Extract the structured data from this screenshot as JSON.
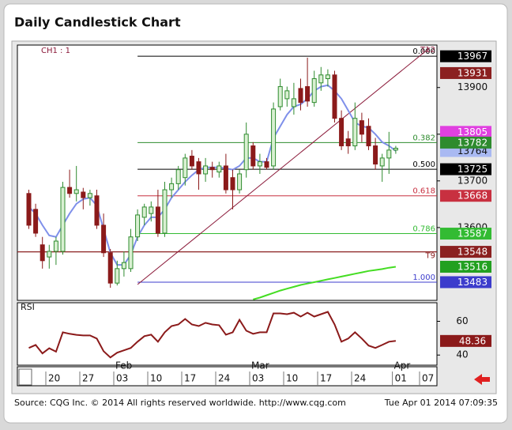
{
  "chart_data": [
    {
      "type": "candlestick",
      "title": "Daily Candlestick Chart",
      "label": "CH1 : 1",
      "categories": [
        null,
        null,
        null,
        "20",
        null,
        null,
        null,
        null,
        "27",
        null,
        null,
        null,
        null,
        "03",
        null,
        null,
        null,
        null,
        "10",
        null,
        null,
        null,
        null,
        "17",
        null,
        null,
        null,
        null,
        "24",
        null,
        null,
        null,
        null,
        "03",
        null,
        null,
        null,
        null,
        "10",
        null,
        null,
        null,
        null,
        "17",
        null,
        null,
        null,
        null,
        "24",
        null,
        null,
        null,
        null,
        null,
        "01",
        null,
        null,
        null,
        "07",
        null
      ],
      "months": [
        null,
        null,
        null,
        null,
        null,
        null,
        null,
        null,
        null,
        null,
        null,
        null,
        null,
        "Feb",
        null,
        null,
        null,
        null,
        null,
        null,
        null,
        null,
        null,
        null,
        null,
        null,
        null,
        null,
        null,
        null,
        null,
        null,
        null,
        "Mar",
        null,
        null,
        null,
        null,
        null,
        null,
        null,
        null,
        null,
        null,
        null,
        null,
        null,
        null,
        null,
        null,
        null,
        null,
        null,
        null,
        "Apr",
        null,
        null,
        null,
        null,
        null
      ],
      "open": [
        13673,
        13639,
        13563,
        13537,
        13549,
        13549,
        13686,
        13673,
        13676,
        13664,
        13668,
        13605,
        13546,
        13481,
        13512,
        13512,
        13580,
        13622,
        13630,
        13644,
        13588,
        13681,
        13694,
        13707,
        13753,
        13741,
        13715,
        13729,
        13719,
        13732,
        13707,
        13681,
        13724,
        13775,
        13732,
        13741,
        13732,
        13859,
        13876,
        13859,
        13898,
        13902,
        13868,
        13910,
        13919,
        13927,
        13834,
        13790,
        13775,
        13829,
        13817,
        13775,
        13732,
        13749,
        13766,
        null,
        null,
        null,
        null,
        null
      ],
      "high": [
        13681,
        13651,
        13580,
        13563,
        13580,
        13698,
        13724,
        13732,
        13685,
        13681,
        13681,
        13630,
        13554,
        13529,
        13549,
        13597,
        13639,
        13651,
        13656,
        13681,
        13698,
        13707,
        13732,
        13758,
        13766,
        13749,
        13749,
        13741,
        13741,
        13758,
        13724,
        13724,
        13825,
        13783,
        13758,
        13749,
        13868,
        13919,
        13902,
        13910,
        13919,
        13964,
        13936,
        13944,
        13939,
        13936,
        13851,
        13807,
        13868,
        13846,
        13834,
        13792,
        13758,
        13805,
        13775,
        null,
        null,
        null,
        null,
        null
      ],
      "low": [
        13597,
        13580,
        13512,
        13512,
        13520,
        13542,
        13664,
        13656,
        13639,
        13647,
        13597,
        13537,
        13471,
        13476,
        13495,
        13505,
        13571,
        13605,
        13613,
        13580,
        13580,
        13664,
        13681,
        13690,
        13724,
        13681,
        13698,
        13707,
        13707,
        13673,
        13639,
        13673,
        13707,
        13724,
        13715,
        13724,
        13724,
        13851,
        13859,
        13842,
        13851,
        13859,
        13859,
        13893,
        13902,
        13825,
        13766,
        13758,
        13766,
        13783,
        13766,
        13724,
        13698,
        13715,
        13758,
        null,
        null,
        null,
        null,
        null
      ],
      "close": [
        13605,
        13588,
        13529,
        13549,
        13571,
        13686,
        13673,
        13681,
        13664,
        13673,
        13605,
        13546,
        13481,
        13512,
        13525,
        13580,
        13627,
        13644,
        13644,
        13588,
        13681,
        13694,
        13724,
        13749,
        13732,
        13715,
        13732,
        13724,
        13732,
        13681,
        13681,
        13715,
        13800,
        13732,
        13741,
        13729,
        13854,
        13902,
        13893,
        13876,
        13868,
        13871,
        13919,
        13927,
        13927,
        13834,
        13775,
        13775,
        13834,
        13800,
        13775,
        13736,
        13749,
        13766,
        13770,
        null,
        null,
        null,
        null,
        null
      ],
      "up_color": "#2e8b2e",
      "down_color": "#8b1a1a",
      "series": [
        {
          "color": "#7f90ea",
          "marker_color": "#a9b9f2",
          "values": [
            13644,
            13630,
            13605,
            13583,
            13580,
            13605,
            13630,
            13651,
            13661,
            13664,
            13647,
            13597,
            13546,
            13520,
            13520,
            13542,
            13580,
            13605,
            13622,
            13622,
            13639,
            13664,
            13681,
            13698,
            13712,
            13724,
            13729,
            13729,
            13729,
            13727,
            13724,
            13732,
            13749,
            13749,
            13741,
            13741,
            13792,
            13817,
            13842,
            13859,
            13864,
            13876,
            13893,
            13902,
            13905,
            13893,
            13876,
            13851,
            13825,
            13817,
            13814,
            13800,
            13783,
            13775,
            13764,
            null,
            null,
            null,
            null,
            null
          ]
        },
        {
          "color": "#44dd22",
          "marker_color": "#22a020",
          "values": [
            null,
            null,
            null,
            null,
            null,
            null,
            null,
            null,
            null,
            null,
            null,
            null,
            null,
            null,
            null,
            null,
            null,
            null,
            null,
            null,
            null,
            null,
            null,
            null,
            null,
            null,
            null,
            null,
            null,
            null,
            null,
            null,
            null,
            13446,
            13450,
            13455,
            13460,
            13465,
            13469,
            13473,
            13477,
            13480,
            13483,
            13486,
            13489,
            13492,
            13495,
            13498,
            13501,
            13504,
            13507,
            13509,
            13511,
            13514,
            13516,
            null,
            null,
            null,
            null,
            null
          ]
        }
      ],
      "trendline": {
        "label": "T12",
        "color": "#8b1a3a",
        "x": [
          16,
          59
        ],
        "values": [
          13478,
          13985
        ]
      },
      "fibonacci": [
        {
          "label": "0.000",
          "value": 13967,
          "color": "#000000"
        },
        {
          "label": "0.382",
          "value": 13782,
          "color": "#2e8b2e"
        },
        {
          "label": "0.500",
          "value": 13725,
          "color": "#000000"
        },
        {
          "label": "0.618",
          "value": 13668,
          "color": "#c83040"
        },
        {
          "label": "0.786",
          "value": 13587,
          "color": "#33bb33"
        },
        {
          "label": "1.000",
          "value": 13483,
          "color": "#3c3ccc"
        }
      ],
      "horizontal_lines": [
        {
          "label": "T9",
          "value": 13548,
          "color": "#8b2020"
        }
      ],
      "price_markers": [
        {
          "value": 13931,
          "color": "#8b2020"
        },
        {
          "value": 13805,
          "color": "#e040e0"
        }
      ],
      "ylim": [
        13444,
        13991
      ],
      "yticks": [
        13600,
        13700,
        13800,
        13900
      ]
    },
    {
      "type": "line",
      "label": "RSI",
      "color": "#8b1a1a",
      "values": [
        44.2,
        46,
        41,
        44,
        42,
        53.5,
        52.6,
        52,
        51.6,
        51.6,
        49.8,
        42.3,
        38.6,
        41.4,
        42.8,
        44.2,
        47.9,
        51.2,
        52.1,
        47.9,
        53.5,
        57.2,
        58.1,
        61.4,
        58.1,
        57.2,
        59.1,
        58.1,
        57.7,
        52.1,
        53.5,
        60.9,
        54.4,
        52.6,
        53.5,
        53.5,
        64.7,
        64.7,
        64.2,
        65.1,
        62.8,
        65.1,
        62.8,
        64.2,
        65.6,
        58.1,
        47.9,
        49.8,
        53.5,
        49.8,
        45.6,
        44.2,
        46,
        47.9,
        48.36,
        null,
        null,
        null,
        null,
        null
      ],
      "ylim": [
        34,
        71
      ],
      "yticks": [
        40,
        60
      ]
    }
  ],
  "footer": {
    "source": "Source: CQG Inc. © 2014 All rights reserved worldwide. http://www.cqg.com",
    "timestamp": "Tue Apr 01 2014 07:09:35"
  }
}
